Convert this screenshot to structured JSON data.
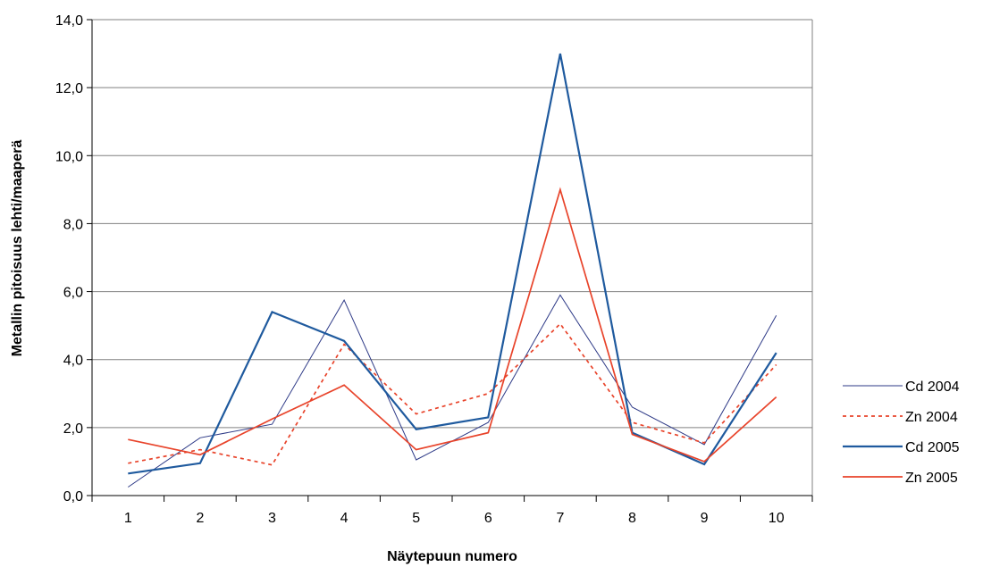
{
  "chart_data": {
    "type": "line",
    "title": "",
    "xlabel": "Näytepuun numero",
    "ylabel": "Metallin pitoisuus lehti/maaperä",
    "categories": [
      "1",
      "2",
      "3",
      "4",
      "5",
      "6",
      "7",
      "8",
      "9",
      "10"
    ],
    "ylim": [
      0,
      14
    ],
    "yticks": [
      "0,0",
      "2,0",
      "4,0",
      "6,0",
      "8,0",
      "10,0",
      "12,0",
      "14,0"
    ],
    "grid": true,
    "legend_position": "right",
    "series": [
      {
        "name": "Cd 2004",
        "color": "#2e3a87",
        "dash": "solid",
        "width": "thin",
        "values": [
          0.25,
          1.7,
          2.1,
          5.75,
          1.05,
          2.15,
          5.9,
          2.6,
          1.5,
          5.3
        ]
      },
      {
        "name": "Zn 2004",
        "color": "#e8432a",
        "dash": "dashed",
        "width": "medium",
        "values": [
          0.95,
          1.35,
          0.9,
          4.45,
          2.4,
          3.0,
          5.05,
          2.15,
          1.55,
          3.85
        ]
      },
      {
        "name": "Cd 2005",
        "color": "#1f5a9e",
        "dash": "solid",
        "width": "thick",
        "values": [
          0.65,
          0.95,
          5.4,
          4.55,
          1.95,
          2.3,
          13.0,
          1.85,
          0.92,
          4.2
        ]
      },
      {
        "name": "Zn 2005",
        "color": "#e8432a",
        "dash": "solid",
        "width": "medium",
        "values": [
          1.65,
          1.2,
          2.25,
          3.25,
          1.35,
          1.85,
          9.0,
          1.8,
          1.0,
          2.9
        ]
      }
    ]
  }
}
